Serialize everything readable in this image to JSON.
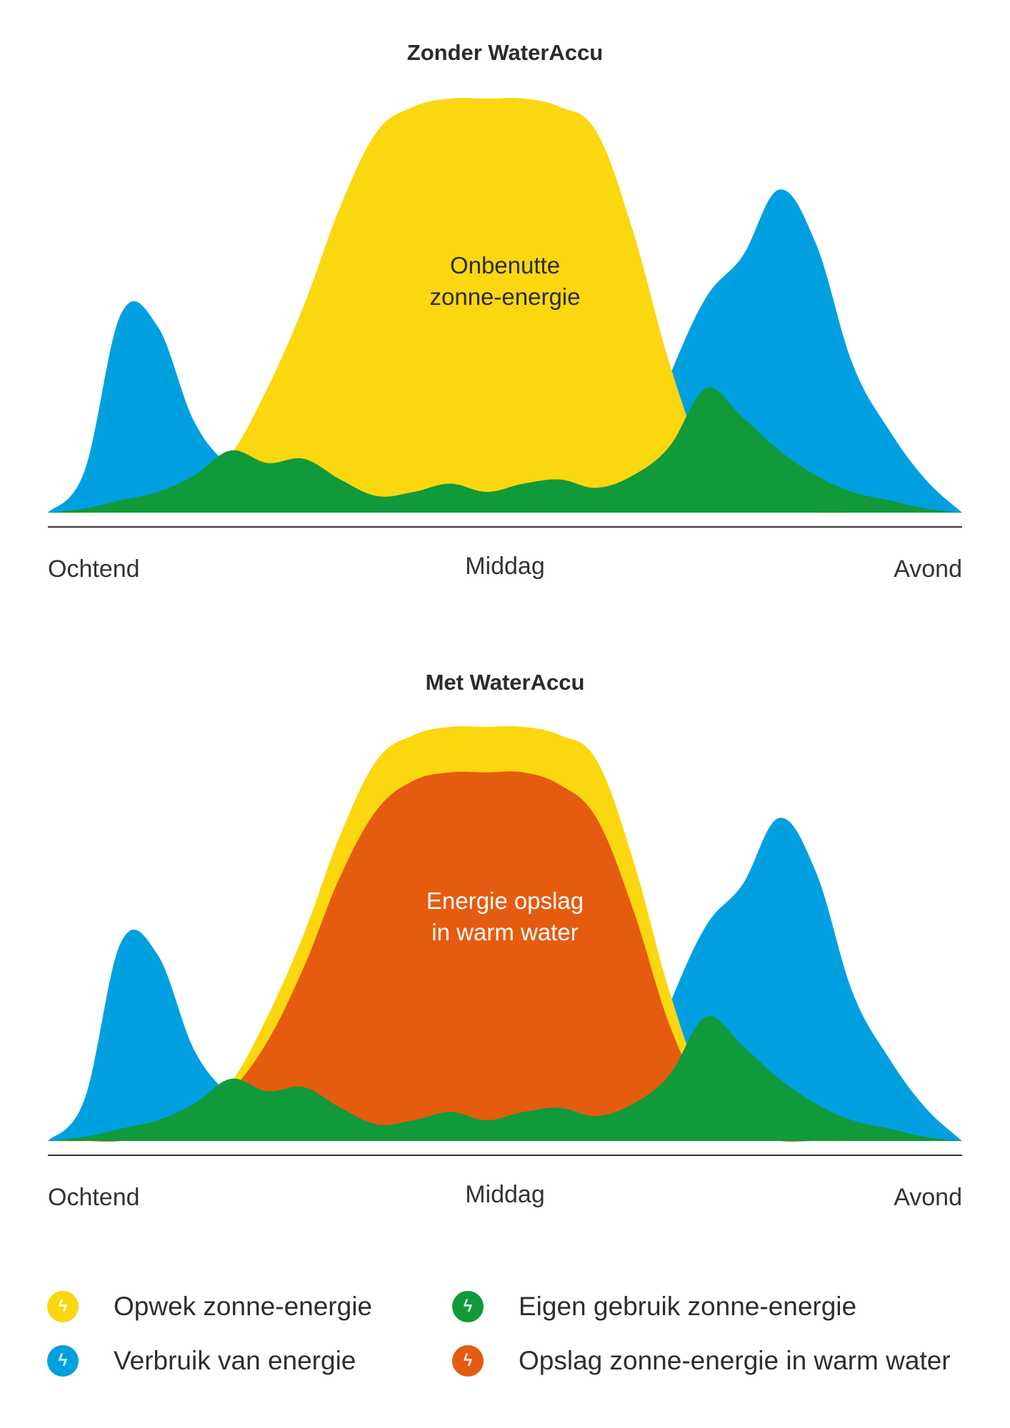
{
  "colors": {
    "yellow": "#FBD70F",
    "blue": "#00A0E0",
    "green": "#109A3A",
    "orange": "#E55B10",
    "axis": "#333333"
  },
  "chart_data": [
    {
      "type": "area",
      "title": "Zonder WaterAccu",
      "x_tick_labels": [
        "Ochtend",
        "Middag",
        "Avond"
      ],
      "annotation": "Onbenutte\nzonne-energie",
      "grid": false,
      "x": [
        0,
        4,
        8,
        12,
        16,
        20,
        24,
        28,
        32,
        36,
        40,
        44,
        48,
        52,
        56,
        60,
        64,
        68,
        72,
        76,
        80,
        84,
        88,
        92,
        96,
        100
      ],
      "series": [
        {
          "color": "blue",
          "values": [
            0,
            0.1,
            0.48,
            0.45,
            0.22,
            0.11,
            0.06,
            0.05,
            0.05,
            0.06,
            0.07,
            0.08,
            0.06,
            0.08,
            0.09,
            0.07,
            0.1,
            0.33,
            0.52,
            0.62,
            0.78,
            0.65,
            0.36,
            0.2,
            0.08,
            0
          ]
        },
        {
          "color": "yellow",
          "values": [
            0,
            0,
            0.01,
            0.03,
            0.06,
            0.14,
            0.3,
            0.5,
            0.74,
            0.92,
            0.98,
            1.0,
            1.0,
            1.0,
            0.98,
            0.92,
            0.68,
            0.36,
            0.12,
            0.03,
            0.01,
            0,
            0,
            0,
            0,
            0
          ]
        },
        {
          "color": "green",
          "values": [
            0,
            0.01,
            0.03,
            0.05,
            0.09,
            0.15,
            0.12,
            0.13,
            0.08,
            0.04,
            0.05,
            0.07,
            0.05,
            0.07,
            0.08,
            0.06,
            0.09,
            0.16,
            0.3,
            0.23,
            0.15,
            0.09,
            0.05,
            0.03,
            0.01,
            0
          ]
        }
      ]
    },
    {
      "type": "area",
      "title": "Met WaterAccu",
      "x_tick_labels": [
        "Ochtend",
        "Middag",
        "Avond"
      ],
      "annotation": "Energie opslag\nin warm water",
      "grid": false,
      "x": [
        0,
        4,
        8,
        12,
        16,
        20,
        24,
        28,
        32,
        36,
        40,
        44,
        48,
        52,
        56,
        60,
        64,
        68,
        72,
        76,
        80,
        84,
        88,
        92,
        96,
        100
      ],
      "series": [
        {
          "color": "blue",
          "values": [
            0,
            0.1,
            0.48,
            0.45,
            0.22,
            0.11,
            0.06,
            0.05,
            0.05,
            0.06,
            0.07,
            0.08,
            0.06,
            0.08,
            0.09,
            0.07,
            0.1,
            0.33,
            0.52,
            0.62,
            0.78,
            0.65,
            0.36,
            0.2,
            0.08,
            0
          ]
        },
        {
          "color": "yellow",
          "values": [
            0,
            0,
            0.01,
            0.03,
            0.06,
            0.14,
            0.3,
            0.5,
            0.74,
            0.92,
            0.98,
            1.0,
            1.0,
            1.0,
            0.98,
            0.92,
            0.68,
            0.36,
            0.12,
            0.03,
            0.01,
            0,
            0,
            0,
            0,
            0
          ]
        },
        {
          "color": "orange",
          "values": [
            0,
            0,
            0,
            0.02,
            0.05,
            0.12,
            0.24,
            0.42,
            0.64,
            0.8,
            0.87,
            0.89,
            0.89,
            0.89,
            0.86,
            0.78,
            0.56,
            0.28,
            0.1,
            0.02,
            0,
            0,
            0,
            0,
            0,
            0
          ]
        },
        {
          "color": "green",
          "values": [
            0,
            0.01,
            0.03,
            0.05,
            0.09,
            0.15,
            0.12,
            0.13,
            0.08,
            0.04,
            0.05,
            0.07,
            0.05,
            0.07,
            0.08,
            0.06,
            0.09,
            0.16,
            0.3,
            0.23,
            0.15,
            0.09,
            0.05,
            0.03,
            0.01,
            0
          ]
        }
      ]
    }
  ],
  "legend": [
    {
      "label": "Opwek zonne-energie",
      "color": "yellow",
      "icon": "lightning-icon"
    },
    {
      "label": "Eigen gebruik zonne-energie",
      "color": "green",
      "icon": "lightning-icon"
    },
    {
      "label": "Verbruik van energie",
      "color": "blue",
      "icon": "lightning-icon"
    },
    {
      "label": "Opslag zonne-energie in warm water",
      "color": "orange",
      "icon": "lightning-icon"
    }
  ]
}
